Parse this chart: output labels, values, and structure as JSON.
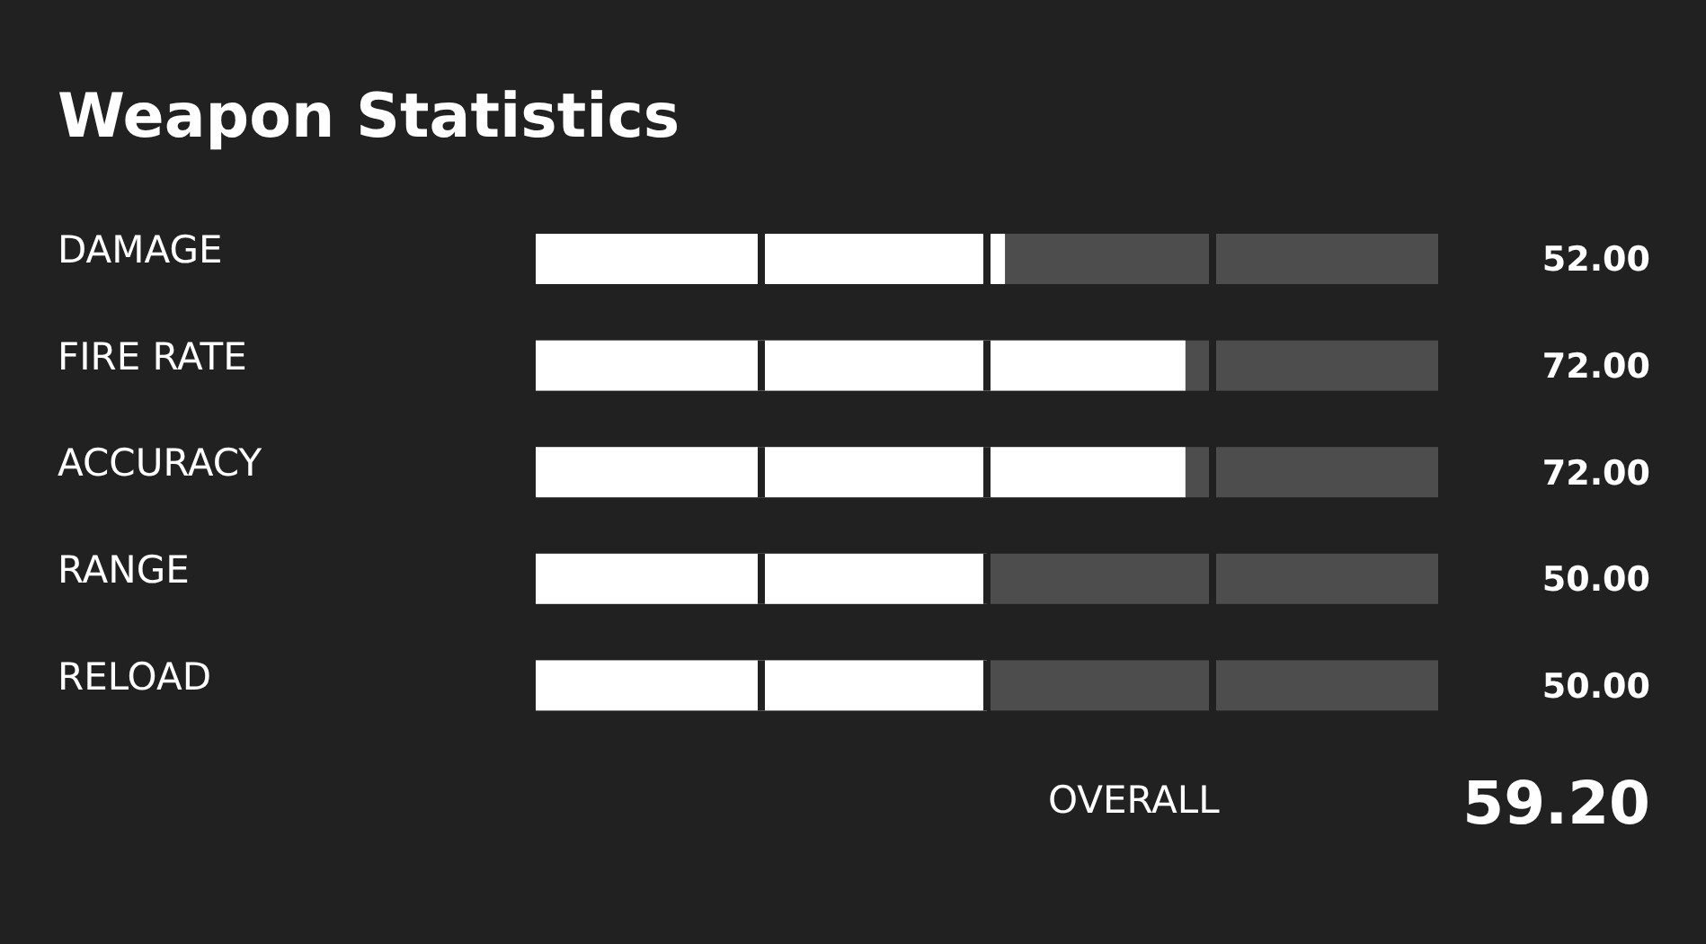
{
  "chart_data": {
    "type": "bar",
    "orientation": "horizontal",
    "title": "Weapon Statistics",
    "categories": [
      "DAMAGE",
      "FIRE RATE",
      "ACCURACY",
      "RANGE",
      "RELOAD"
    ],
    "values": [
      52,
      72,
      72,
      50,
      50
    ],
    "color": "#ffffff",
    "value_labels": [
      "52.00",
      "72.00",
      "72.00",
      "50.00",
      "50.00"
    ],
    "xlim": [
      0,
      100
    ],
    "annotations": [
      "OVERALL",
      "59.20"
    ]
  }
}
